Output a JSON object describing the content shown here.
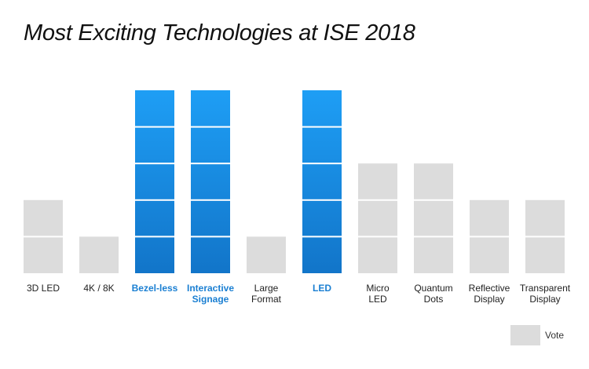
{
  "chart_data": {
    "type": "bar",
    "title": "Most Exciting Technologies at ISE 2018",
    "categories": [
      [
        "3D LED"
      ],
      [
        "4K / 8K"
      ],
      [
        "Bezel-less"
      ],
      [
        "Interactive",
        "Signage"
      ],
      [
        "Large",
        "Format"
      ],
      [
        "LED"
      ],
      [
        "Micro",
        "LED"
      ],
      [
        "Quantum",
        "Dots"
      ],
      [
        "Reflective",
        "Display"
      ],
      [
        "Transparent",
        "Display"
      ]
    ],
    "values": [
      2,
      1,
      5,
      5,
      1,
      5,
      3,
      3,
      2,
      2
    ],
    "highlighted": [
      false,
      false,
      true,
      true,
      false,
      true,
      false,
      false,
      false,
      false
    ],
    "xlabel": "",
    "ylabel": "",
    "ylim": [
      0,
      5
    ],
    "grid": false,
    "legend": {
      "label": "Vote",
      "position": "bottom-right"
    },
    "colors": {
      "default_block": "#dcdcdc",
      "highlight_top": "#1e9ef5",
      "highlight_bottom": "#1275c9",
      "highlight_label": "#1a7fd2",
      "default_label": "#222222"
    }
  }
}
